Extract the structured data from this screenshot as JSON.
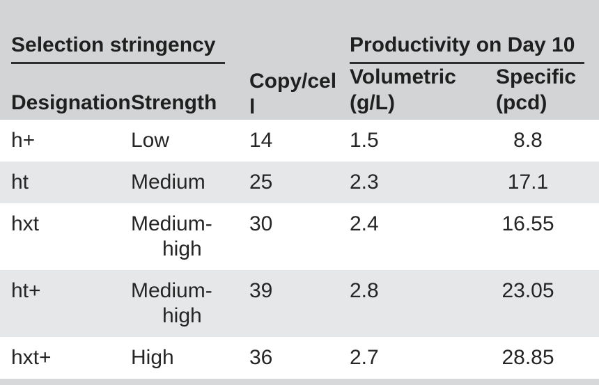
{
  "colors": {
    "header_background": "#d2d4d5",
    "row_stripe_background": "#e6e7e8",
    "bottom_border_bar": "#d7d8d9",
    "text": "#252525",
    "header_rule": "#2e2e2e"
  },
  "table": {
    "header_groups": {
      "selection_stringency": "Selection stringency",
      "copy_per_cell": "Copy/cell",
      "productivity_day10": "Productivity on Day 10"
    },
    "columns": {
      "designation": "Designation",
      "strength": "Strength",
      "volumetric": "Volumetric (g/L)",
      "specific": "Specific (pcd)"
    },
    "rows": [
      {
        "designation": "h+",
        "strength": "Low",
        "copies_per_cell": "14",
        "volumetric_g_l": "1.5",
        "specific_pcd": "8.8"
      },
      {
        "designation": "ht",
        "strength": "Medium",
        "copies_per_cell": "25",
        "volumetric_g_l": "2.3",
        "specific_pcd": "17.1"
      },
      {
        "designation": "hxt",
        "strength": "Medium-high",
        "copies_per_cell": "30",
        "volumetric_g_l": "2.4",
        "specific_pcd": "16.55"
      },
      {
        "designation": "ht+",
        "strength": "Medium-high",
        "copies_per_cell": "39",
        "volumetric_g_l": "2.8",
        "specific_pcd": "23.05"
      },
      {
        "designation": "hxt+",
        "strength": "High",
        "copies_per_cell": "36",
        "volumetric_g_l": "2.7",
        "specific_pcd": "28.85"
      }
    ]
  }
}
